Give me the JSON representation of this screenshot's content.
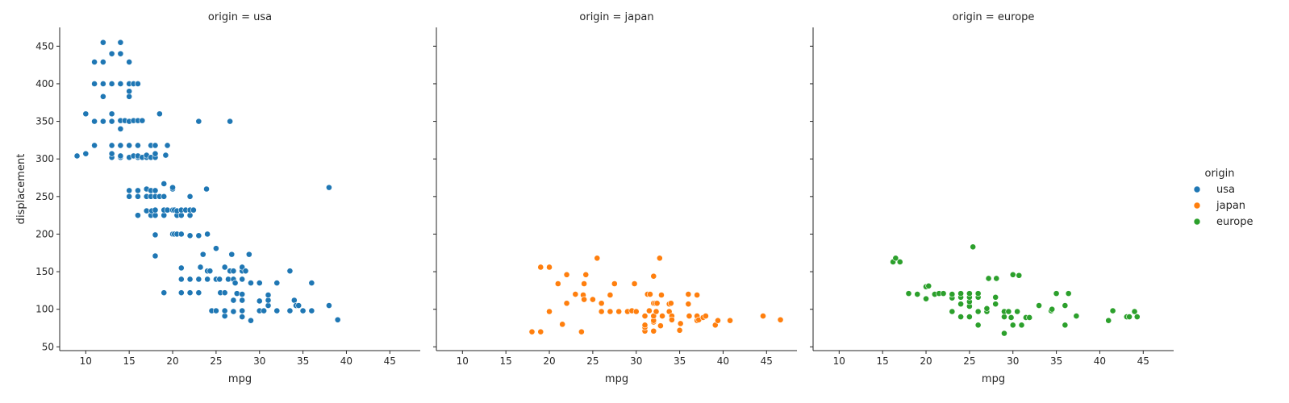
{
  "chart_data": {
    "type": "scatter",
    "title": "",
    "xlabel": "mpg",
    "ylabel": "displacement",
    "xlim": [
      7,
      48.5
    ],
    "ylim": [
      45,
      475
    ],
    "xticks": [
      10,
      15,
      20,
      25,
      30,
      35,
      40,
      45
    ],
    "yticks": [
      50,
      100,
      150,
      200,
      250,
      300,
      350,
      400,
      450
    ],
    "legend": {
      "title": "origin",
      "placement": "right"
    },
    "panels": [
      {
        "title": "origin = usa",
        "series": "usa",
        "color": "#1f77b4",
        "points": [
          [
            9,
            304
          ],
          [
            10,
            307
          ],
          [
            10,
            360
          ],
          [
            11,
            318
          ],
          [
            11,
            350
          ],
          [
            11,
            400
          ],
          [
            11,
            429
          ],
          [
            12,
            350
          ],
          [
            12,
            383
          ],
          [
            12,
            400
          ],
          [
            12,
            429
          ],
          [
            12,
            455
          ],
          [
            13,
            302
          ],
          [
            13,
            307
          ],
          [
            13,
            318
          ],
          [
            13,
            350
          ],
          [
            13,
            360
          ],
          [
            13,
            400
          ],
          [
            13,
            440
          ],
          [
            14,
            302
          ],
          [
            14,
            304
          ],
          [
            14,
            318
          ],
          [
            14,
            340
          ],
          [
            14,
            351
          ],
          [
            14,
            400
          ],
          [
            14,
            440
          ],
          [
            14,
            455
          ],
          [
            14.5,
            351
          ],
          [
            15,
            250
          ],
          [
            15,
            258
          ],
          [
            15,
            302
          ],
          [
            15,
            318
          ],
          [
            15,
            350
          ],
          [
            15,
            383
          ],
          [
            15,
            390
          ],
          [
            15,
            400
          ],
          [
            15,
            429
          ],
          [
            15.5,
            304
          ],
          [
            15.5,
            351
          ],
          [
            15.5,
            400
          ],
          [
            16,
            225
          ],
          [
            16,
            250
          ],
          [
            16,
            258
          ],
          [
            16,
            302
          ],
          [
            16,
            304
          ],
          [
            16,
            318
          ],
          [
            16,
            351
          ],
          [
            16,
            400
          ],
          [
            16.5,
            302
          ],
          [
            16.5,
            351
          ],
          [
            17,
            231
          ],
          [
            17,
            250
          ],
          [
            17,
            260
          ],
          [
            17,
            302
          ],
          [
            17,
            305
          ],
          [
            17.5,
            225
          ],
          [
            17.5,
            250
          ],
          [
            17.5,
            258
          ],
          [
            17.5,
            302
          ],
          [
            17.5,
            318
          ],
          [
            17.6,
            231
          ],
          [
            18,
            171
          ],
          [
            18,
            199
          ],
          [
            18,
            225
          ],
          [
            18,
            232
          ],
          [
            18,
            250
          ],
          [
            18,
            258
          ],
          [
            18,
            302
          ],
          [
            18,
            307
          ],
          [
            18,
            318
          ],
          [
            18.5,
            250
          ],
          [
            18.5,
            360
          ],
          [
            19,
            122
          ],
          [
            19,
            225
          ],
          [
            19,
            232
          ],
          [
            19,
            250
          ],
          [
            19,
            267
          ],
          [
            19.2,
            305
          ],
          [
            19.4,
            232
          ],
          [
            19.4,
            318
          ],
          [
            20,
            200
          ],
          [
            20,
            232
          ],
          [
            20,
            260
          ],
          [
            20,
            262
          ],
          [
            20.2,
            200
          ],
          [
            20.2,
            232
          ],
          [
            20.5,
            200
          ],
          [
            20.5,
            225
          ],
          [
            20.5,
            231
          ],
          [
            21,
            122
          ],
          [
            21,
            140
          ],
          [
            21,
            155
          ],
          [
            21,
            200
          ],
          [
            21,
            225
          ],
          [
            21,
            232
          ],
          [
            21.5,
            232
          ],
          [
            22,
            122
          ],
          [
            22,
            140
          ],
          [
            22,
            198
          ],
          [
            22,
            225
          ],
          [
            22,
            232
          ],
          [
            22,
            250
          ],
          [
            22.4,
            232
          ],
          [
            23,
            122
          ],
          [
            23,
            140
          ],
          [
            23,
            198
          ],
          [
            23,
            350
          ],
          [
            23.2,
            156
          ],
          [
            23.5,
            173
          ],
          [
            23.9,
            260
          ],
          [
            24,
            140
          ],
          [
            24,
            151
          ],
          [
            24,
            200
          ],
          [
            24.3,
            151
          ],
          [
            24.5,
            98
          ],
          [
            25,
            98
          ],
          [
            25,
            140
          ],
          [
            25,
            181
          ],
          [
            25.4,
            140
          ],
          [
            25.5,
            122
          ],
          [
            26,
            91
          ],
          [
            26,
            98
          ],
          [
            26,
            122
          ],
          [
            26,
            156
          ],
          [
            26.4,
            140
          ],
          [
            26.6,
            151
          ],
          [
            26.6,
            350
          ],
          [
            26.8,
            173
          ],
          [
            27,
            97
          ],
          [
            27,
            112
          ],
          [
            27,
            140
          ],
          [
            27,
            151
          ],
          [
            27.2,
            135
          ],
          [
            27.4,
            121
          ],
          [
            28,
            90
          ],
          [
            28,
            98
          ],
          [
            28,
            112
          ],
          [
            28,
            120
          ],
          [
            28,
            140
          ],
          [
            28,
            151
          ],
          [
            28,
            156
          ],
          [
            28.4,
            151
          ],
          [
            28.8,
            173
          ],
          [
            29,
            85
          ],
          [
            29,
            135
          ],
          [
            30,
            98
          ],
          [
            30,
            111
          ],
          [
            30,
            135
          ],
          [
            30.5,
            98
          ],
          [
            31,
            105
          ],
          [
            31,
            112
          ],
          [
            31,
            119
          ],
          [
            32,
            98
          ],
          [
            32,
            135
          ],
          [
            33.5,
            98
          ],
          [
            33.5,
            151
          ],
          [
            34,
            112
          ],
          [
            34.2,
            105
          ],
          [
            34.5,
            105
          ],
          [
            35,
            98
          ],
          [
            36,
            98
          ],
          [
            36,
            135
          ],
          [
            38,
            105
          ],
          [
            38,
            262
          ],
          [
            39,
            86
          ]
        ]
      },
      {
        "title": "origin = japan",
        "series": "japan",
        "color": "#ff7f0e",
        "points": [
          [
            18,
            70
          ],
          [
            19,
            70
          ],
          [
            19,
            156
          ],
          [
            20,
            97
          ],
          [
            20,
            156
          ],
          [
            21,
            134
          ],
          [
            21.5,
            80
          ],
          [
            22,
            108
          ],
          [
            22,
            146
          ],
          [
            23,
            120
          ],
          [
            23.7,
            70
          ],
          [
            23.9,
            119
          ],
          [
            24,
            113
          ],
          [
            24,
            134
          ],
          [
            24.2,
            146
          ],
          [
            25,
            113
          ],
          [
            25.5,
            168
          ],
          [
            26,
            97
          ],
          [
            26,
            108
          ],
          [
            27,
            97
          ],
          [
            27,
            119
          ],
          [
            27.5,
            134
          ],
          [
            28,
            97
          ],
          [
            29,
            97
          ],
          [
            29.5,
            98
          ],
          [
            29.8,
            134
          ],
          [
            30,
            97
          ],
          [
            31,
            71
          ],
          [
            31,
            76
          ],
          [
            31,
            79
          ],
          [
            31,
            91
          ],
          [
            31.3,
            120
          ],
          [
            31.5,
            98
          ],
          [
            31.6,
            120
          ],
          [
            32,
            71
          ],
          [
            32,
            83
          ],
          [
            32,
            85
          ],
          [
            32,
            91
          ],
          [
            32,
            108
          ],
          [
            32,
            144
          ],
          [
            32.2,
            108
          ],
          [
            32.3,
            97
          ],
          [
            32.4,
            108
          ],
          [
            32.7,
            168
          ],
          [
            32.8,
            78
          ],
          [
            32.9,
            119
          ],
          [
            33,
            91
          ],
          [
            33.8,
            97
          ],
          [
            33.8,
            107
          ],
          [
            34,
            108
          ],
          [
            34.1,
            91
          ],
          [
            34.1,
            86
          ],
          [
            35,
            72
          ],
          [
            35.1,
            81
          ],
          [
            36,
            107
          ],
          [
            36,
            120
          ],
          [
            36.1,
            91
          ],
          [
            37,
            85
          ],
          [
            37,
            91
          ],
          [
            37,
            119
          ],
          [
            37.2,
            86
          ],
          [
            37.7,
            89
          ],
          [
            38,
            91
          ],
          [
            39.1,
            79
          ],
          [
            39.4,
            85
          ],
          [
            40.8,
            85
          ],
          [
            44.6,
            91
          ],
          [
            46.6,
            86
          ]
        ]
      },
      {
        "title": "origin = europe",
        "series": "europe",
        "color": "#2ca02c",
        "points": [
          [
            16.2,
            163
          ],
          [
            16.5,
            168
          ],
          [
            17,
            163
          ],
          [
            18,
            121
          ],
          [
            19,
            120
          ],
          [
            20,
            114
          ],
          [
            20,
            130
          ],
          [
            20.3,
            131
          ],
          [
            21,
            120
          ],
          [
            21.5,
            121
          ],
          [
            22,
            121
          ],
          [
            23,
            97
          ],
          [
            23,
            115
          ],
          [
            23,
            120
          ],
          [
            24,
            90
          ],
          [
            24,
            107
          ],
          [
            24,
            116
          ],
          [
            24,
            121
          ],
          [
            25,
            90
          ],
          [
            25,
            104
          ],
          [
            25,
            110
          ],
          [
            25,
            116
          ],
          [
            25,
            121
          ],
          [
            25.4,
            183
          ],
          [
            26,
            79
          ],
          [
            26,
            97
          ],
          [
            26,
            116
          ],
          [
            26,
            121
          ],
          [
            27,
            97
          ],
          [
            27,
            101
          ],
          [
            27.2,
            141
          ],
          [
            28,
            107
          ],
          [
            28,
            116
          ],
          [
            28.1,
            141
          ],
          [
            29,
            68
          ],
          [
            29,
            90
          ],
          [
            29,
            97
          ],
          [
            29.5,
            97
          ],
          [
            29.8,
            89
          ],
          [
            30,
            79
          ],
          [
            30,
            146
          ],
          [
            30.5,
            97
          ],
          [
            30.7,
            145
          ],
          [
            31,
            79
          ],
          [
            31.5,
            89
          ],
          [
            31.9,
            89
          ],
          [
            33,
            105
          ],
          [
            34.4,
            98
          ],
          [
            34.5,
            100
          ],
          [
            35,
            121
          ],
          [
            36,
            79
          ],
          [
            36,
            105
          ],
          [
            36.4,
            121
          ],
          [
            37.3,
            91
          ],
          [
            41.5,
            98
          ],
          [
            43.1,
            90
          ],
          [
            43.4,
            90
          ],
          [
            44,
            97
          ],
          [
            44.3,
            90
          ],
          [
            41,
            85
          ]
        ]
      }
    ]
  }
}
